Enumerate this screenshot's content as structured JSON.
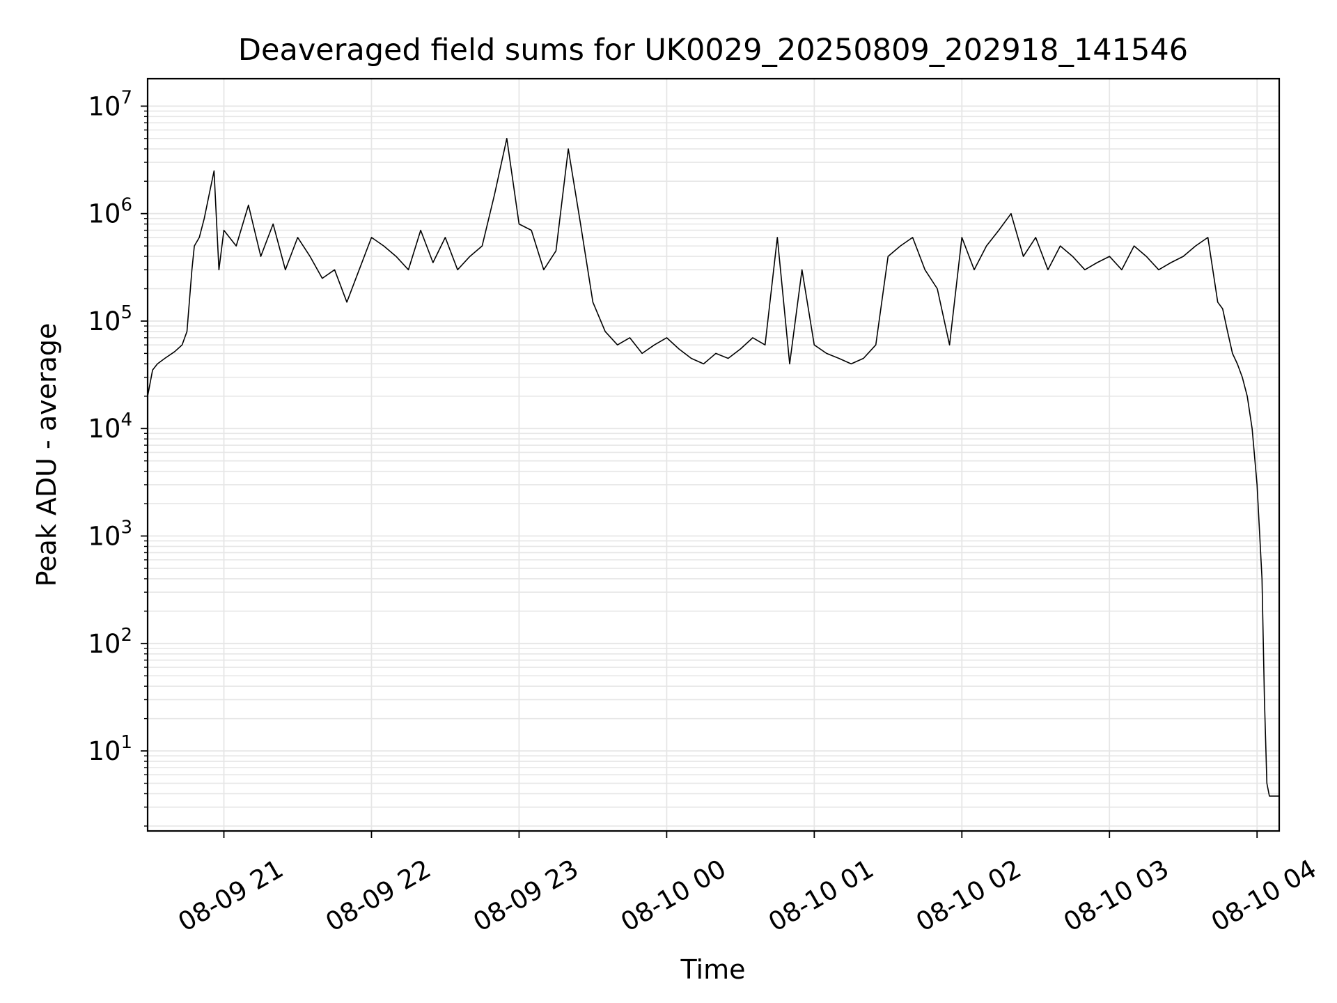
{
  "chart_data": {
    "type": "line",
    "title": "Deaveraged field sums for UK0029_20250809_202918_141546",
    "xlabel": "Time",
    "ylabel": "Peak ADU - average",
    "yscale": "log",
    "ylim": [
      1.8,
      18000000
    ],
    "xlim": [
      "2025-08-09 20:29",
      "2025-08-10 04:09"
    ],
    "grid": true,
    "grid_minor": true,
    "line_color": "#000000",
    "grid_color": "#e6e6e6",
    "x_ticks": [
      {
        "value": "2025-08-09 21:00",
        "label": "08-09 21"
      },
      {
        "value": "2025-08-09 22:00",
        "label": "08-09 22"
      },
      {
        "value": "2025-08-09 23:00",
        "label": "08-09 23"
      },
      {
        "value": "2025-08-10 00:00",
        "label": "08-10 00"
      },
      {
        "value": "2025-08-10 01:00",
        "label": "08-10 01"
      },
      {
        "value": "2025-08-10 02:00",
        "label": "08-10 02"
      },
      {
        "value": "2025-08-10 03:00",
        "label": "08-10 03"
      },
      {
        "value": "2025-08-10 04:00",
        "label": "08-10 04"
      }
    ],
    "y_ticks": [
      {
        "value": 10,
        "base": "10",
        "exp": "1"
      },
      {
        "value": 100,
        "base": "10",
        "exp": "2"
      },
      {
        "value": 1000,
        "base": "10",
        "exp": "3"
      },
      {
        "value": 10000,
        "base": "10",
        "exp": "4"
      },
      {
        "value": 100000,
        "base": "10",
        "exp": "5"
      },
      {
        "value": 1000000,
        "base": "10",
        "exp": "6"
      },
      {
        "value": 10000000,
        "base": "10",
        "exp": "7"
      }
    ],
    "series": [
      {
        "x": [
          "2025-08-09 20:29",
          "2025-08-09 20:31",
          "2025-08-09 20:33",
          "2025-08-09 20:36",
          "2025-08-09 20:40",
          "2025-08-09 20:43",
          "2025-08-09 20:45",
          "2025-08-09 20:47",
          "2025-08-09 20:48",
          "2025-08-09 20:50",
          "2025-08-09 20:52",
          "2025-08-09 20:54",
          "2025-08-09 20:56",
          "2025-08-09 20:58",
          "2025-08-09 21:00",
          "2025-08-09 21:05",
          "2025-08-09 21:10",
          "2025-08-09 21:15",
          "2025-08-09 21:20",
          "2025-08-09 21:25",
          "2025-08-09 21:30",
          "2025-08-09 21:35",
          "2025-08-09 21:40",
          "2025-08-09 21:45",
          "2025-08-09 21:50",
          "2025-08-09 21:55",
          "2025-08-09 22:00",
          "2025-08-09 22:05",
          "2025-08-09 22:10",
          "2025-08-09 22:15",
          "2025-08-09 22:20",
          "2025-08-09 22:25",
          "2025-08-09 22:30",
          "2025-08-09 22:35",
          "2025-08-09 22:40",
          "2025-08-09 22:45",
          "2025-08-09 22:50",
          "2025-08-09 22:55",
          "2025-08-09 23:00",
          "2025-08-09 23:05",
          "2025-08-09 23:10",
          "2025-08-09 23:15",
          "2025-08-09 23:20",
          "2025-08-09 23:25",
          "2025-08-09 23:30",
          "2025-08-09 23:35",
          "2025-08-09 23:40",
          "2025-08-09 23:45",
          "2025-08-09 23:50",
          "2025-08-09 23:55",
          "2025-08-10 00:00",
          "2025-08-10 00:05",
          "2025-08-10 00:10",
          "2025-08-10 00:15",
          "2025-08-10 00:20",
          "2025-08-10 00:25",
          "2025-08-10 00:30",
          "2025-08-10 00:35",
          "2025-08-10 00:40",
          "2025-08-10 00:45",
          "2025-08-10 00:50",
          "2025-08-10 00:55",
          "2025-08-10 01:00",
          "2025-08-10 01:05",
          "2025-08-10 01:10",
          "2025-08-10 01:15",
          "2025-08-10 01:20",
          "2025-08-10 01:25",
          "2025-08-10 01:30",
          "2025-08-10 01:35",
          "2025-08-10 01:40",
          "2025-08-10 01:45",
          "2025-08-10 01:50",
          "2025-08-10 01:55",
          "2025-08-10 02:00",
          "2025-08-10 02:05",
          "2025-08-10 02:10",
          "2025-08-10 02:15",
          "2025-08-10 02:20",
          "2025-08-10 02:25",
          "2025-08-10 02:30",
          "2025-08-10 02:35",
          "2025-08-10 02:40",
          "2025-08-10 02:45",
          "2025-08-10 02:50",
          "2025-08-10 02:55",
          "2025-08-10 03:00",
          "2025-08-10 03:05",
          "2025-08-10 03:10",
          "2025-08-10 03:15",
          "2025-08-10 03:20",
          "2025-08-10 03:25",
          "2025-08-10 03:30",
          "2025-08-10 03:35",
          "2025-08-10 03:40",
          "2025-08-10 03:44",
          "2025-08-10 03:46",
          "2025-08-10 03:48",
          "2025-08-10 03:50",
          "2025-08-10 03:52",
          "2025-08-10 03:54",
          "2025-08-10 03:56",
          "2025-08-10 03:58",
          "2025-08-10 04:00",
          "2025-08-10 04:02",
          "2025-08-10 04:03",
          "2025-08-10 04:04",
          "2025-08-10 04:05",
          "2025-08-10 04:06",
          "2025-08-10 04:07",
          "2025-08-10 04:09"
        ],
        "y": [
          20000,
          35000,
          40000,
          45000,
          52000,
          60000,
          80000,
          300000,
          500000,
          600000,
          900000,
          1500000,
          2500000,
          300000,
          700000,
          500000,
          1200000,
          400000,
          800000,
          300000,
          600000,
          400000,
          250000,
          300000,
          150000,
          300000,
          600000,
          500000,
          400000,
          300000,
          700000,
          350000,
          600000,
          300000,
          400000,
          500000,
          1500000,
          5000000,
          800000,
          700000,
          300000,
          450000,
          4000000,
          800000,
          150000,
          80000,
          60000,
          70000,
          50000,
          60000,
          70000,
          55000,
          45000,
          40000,
          50000,
          45000,
          55000,
          70000,
          60000,
          600000,
          40000,
          300000,
          60000,
          50000,
          45000,
          40000,
          45000,
          60000,
          400000,
          500000,
          600000,
          300000,
          200000,
          60000,
          600000,
          300000,
          500000,
          700000,
          1000000,
          400000,
          600000,
          300000,
          500000,
          400000,
          300000,
          350000,
          400000,
          300000,
          500000,
          400000,
          300000,
          350000,
          400000,
          500000,
          600000,
          150000,
          130000,
          80000,
          50000,
          40000,
          30000,
          20000,
          10000,
          3000,
          400,
          30,
          5,
          3.8,
          3.8,
          3.8,
          3.8
        ]
      }
    ]
  }
}
